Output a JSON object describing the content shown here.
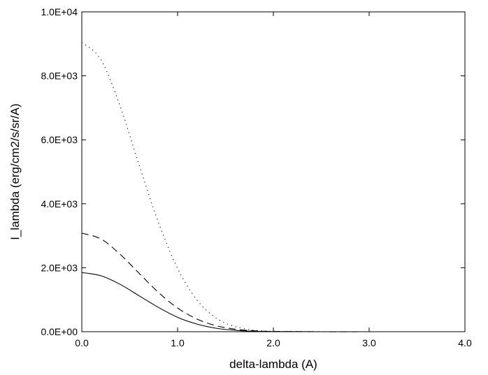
{
  "chart_data": {
    "type": "line",
    "title": "",
    "xlabel": "delta-lambda (A)",
    "ylabel": "I_lambda (erg/cm2/s/sr/A)",
    "xlim": [
      0,
      4
    ],
    "ylim": [
      0,
      10000
    ],
    "x_ticks": [
      0,
      1,
      2,
      3,
      4
    ],
    "x_tick_labels": [
      "0.0",
      "1.0",
      "2.0",
      "3.0",
      "4.0"
    ],
    "y_ticks": [
      0,
      2000,
      4000,
      6000,
      8000,
      10000
    ],
    "y_tick_labels": [
      "0.0E+00",
      "2.0E+03",
      "4.0E+03",
      "6.0E+03",
      "8.0E+03",
      "1.0E+04"
    ],
    "grid": false,
    "legend": "none",
    "series": [
      {
        "style": "solid",
        "x": [
          0,
          0.2,
          0.4,
          0.6,
          0.8,
          1.0,
          1.2,
          1.4,
          1.6,
          1.8,
          2.0,
          2.5,
          3.0,
          3.5,
          4.0
        ],
        "values": [
          1850,
          1750,
          1480,
          1120,
          760,
          450,
          240,
          110,
          45,
          15,
          5,
          0,
          0,
          0,
          0
        ]
      },
      {
        "style": "dashed",
        "x": [
          0,
          0.2,
          0.4,
          0.6,
          0.8,
          1.0,
          1.2,
          1.4,
          1.6,
          1.8,
          2.0,
          2.5,
          3.0,
          3.5,
          4.0
        ],
        "values": [
          3080,
          2900,
          2420,
          1820,
          1230,
          740,
          400,
          190,
          80,
          28,
          9,
          0,
          0,
          0,
          0
        ]
      },
      {
        "style": "dotted",
        "x": [
          0,
          0.2,
          0.4,
          0.6,
          0.8,
          1.0,
          1.2,
          1.4,
          1.6,
          1.8,
          2.0,
          2.5,
          3.0,
          3.5,
          4.0
        ],
        "values": [
          9050,
          8500,
          7050,
          5200,
          3420,
          1980,
          1000,
          430,
          160,
          50,
          14,
          0,
          0,
          0,
          0
        ]
      }
    ]
  }
}
